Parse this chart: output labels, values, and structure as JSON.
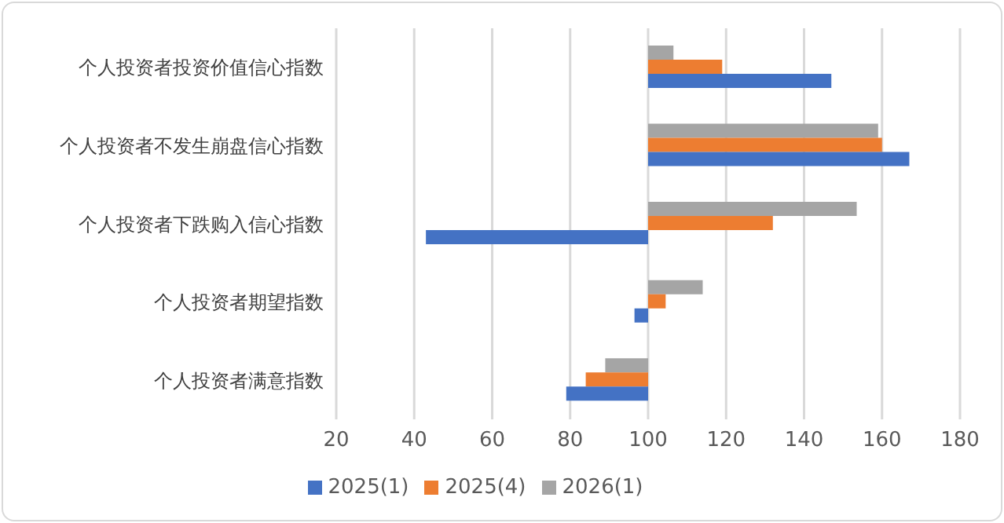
{
  "chart_data": {
    "type": "bar",
    "orientation": "horizontal",
    "categories": [
      "个人投资者投资价值信心指数",
      "个人投资者不发生崩盘信心指数",
      "个人投资者下跌购入信心指数",
      "个人投资者期望指数",
      "个人投资者满意指数"
    ],
    "series": [
      {
        "name": "2026(1)",
        "color": "#a5a5a5",
        "base": [
          100,
          100,
          100,
          100,
          100
        ],
        "values": [
          6.5,
          59,
          53.5,
          14,
          -11
        ]
      },
      {
        "name": "2025(4)",
        "color": "#ed7d31",
        "base": [
          100,
          100,
          100,
          100,
          100
        ],
        "values": [
          19,
          60,
          32,
          4.5,
          -16
        ]
      },
      {
        "name": "2025(1)",
        "color": "#4472c4",
        "base": [
          100,
          100,
          100,
          100,
          100
        ],
        "values": [
          47,
          67,
          -57,
          -3.5,
          -21
        ]
      }
    ],
    "xlim": [
      20,
      180
    ],
    "xticks": [
      20,
      40,
      60,
      80,
      100,
      120,
      140,
      160,
      180
    ],
    "grid": "x",
    "legend": "bottom"
  }
}
